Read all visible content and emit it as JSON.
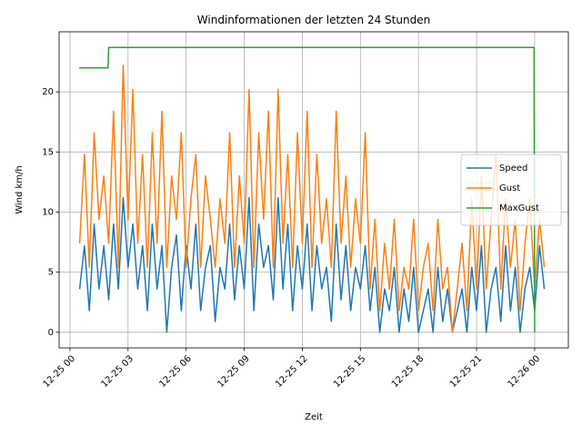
{
  "chart_data": {
    "type": "line",
    "title": "Windinformationen der letzten 24 Stunden",
    "x_label": "Zeit",
    "y_label": "Wind km/h",
    "xlim": [
      -0.56,
      25.74
    ],
    "ylim": [
      -1.3,
      25.0
    ],
    "xticks": [
      {
        "value": 0,
        "label": "12-25 00"
      },
      {
        "value": 3,
        "label": "12-25 03"
      },
      {
        "value": 6,
        "label": "12-25 06"
      },
      {
        "value": 9,
        "label": "12-25 09"
      },
      {
        "value": 12,
        "label": "12-25 12"
      },
      {
        "value": 15,
        "label": "12-25 15"
      },
      {
        "value": 18,
        "label": "12-25 18"
      },
      {
        "value": 21,
        "label": "12-25 21"
      },
      {
        "value": 24,
        "label": "12-26 00"
      }
    ],
    "yticks": [
      0,
      5,
      10,
      15,
      20
    ],
    "grid": true,
    "legend": "center right",
    "x": [
      0.5,
      0.75,
      1,
      1.25,
      1.5,
      1.75,
      2,
      2.25,
      2.5,
      2.75,
      3,
      3.25,
      3.5,
      3.75,
      4,
      4.25,
      4.5,
      4.75,
      5,
      5.25,
      5.5,
      5.75,
      6,
      6.25,
      6.5,
      6.75,
      7,
      7.25,
      7.5,
      7.75,
      8,
      8.25,
      8.5,
      8.75,
      9,
      9.25,
      9.5,
      9.75,
      10,
      10.25,
      10.5,
      10.75,
      11,
      11.25,
      11.5,
      11.75,
      12,
      12.25,
      12.5,
      12.75,
      13,
      13.25,
      13.5,
      13.75,
      14,
      14.25,
      14.5,
      14.75,
      15,
      15.25,
      15.5,
      15.75,
      16,
      16.25,
      16.5,
      16.75,
      17,
      17.25,
      17.5,
      17.75,
      18,
      18.25,
      18.5,
      18.75,
      19,
      19.25,
      19.5,
      19.75,
      20,
      20.25,
      20.5,
      20.75,
      21,
      21.25,
      21.5,
      21.75,
      22,
      22.25,
      22.5,
      22.75,
      23,
      23.25,
      23.5,
      23.75,
      24,
      24.25,
      24.5
    ],
    "series": [
      {
        "name": "Speed",
        "color": "#1f77b4",
        "values": [
          3.6,
          7.2,
          1.8,
          9.0,
          3.6,
          7.2,
          2.7,
          9.0,
          3.6,
          11.2,
          5.4,
          9.0,
          3.6,
          7.2,
          1.8,
          9.0,
          3.6,
          7.2,
          0,
          5.4,
          8.1,
          1.8,
          7.2,
          3.6,
          9.0,
          1.8,
          5.4,
          7.2,
          0.9,
          5.4,
          3.6,
          9.0,
          2.7,
          7.2,
          3.6,
          11.2,
          1.8,
          9.0,
          5.4,
          7.2,
          2.7,
          11.2,
          3.6,
          9.0,
          1.8,
          7.2,
          3.6,
          9.0,
          1.8,
          7.2,
          3.6,
          5.4,
          0.9,
          9.0,
          2.7,
          7.2,
          1.8,
          5.4,
          3.6,
          7.2,
          1.8,
          5.4,
          0,
          3.6,
          1.8,
          5.4,
          0,
          3.6,
          0.9,
          5.4,
          0,
          1.8,
          3.6,
          0,
          5.4,
          0.9,
          3.6,
          0,
          1.8,
          3.6,
          0,
          5.4,
          1.8,
          7.2,
          0,
          3.6,
          5.4,
          0.9,
          7.2,
          1.8,
          5.4,
          0,
          3.6,
          5.4,
          1.8,
          7.2,
          3.6
        ]
      },
      {
        "name": "Gust",
        "color": "#ff7f0e",
        "values": [
          7.4,
          14.8,
          5.4,
          16.6,
          9.4,
          13.0,
          7.4,
          18.4,
          5.4,
          22.2,
          9.4,
          20.2,
          7.4,
          14.8,
          5.4,
          16.6,
          7.4,
          18.4,
          5.4,
          13.0,
          9.4,
          16.6,
          5.4,
          11.1,
          14.8,
          5.4,
          13.0,
          9.4,
          5.4,
          11.1,
          7.4,
          16.6,
          5.4,
          13.0,
          7.4,
          20.2,
          5.4,
          16.6,
          9.4,
          18.4,
          5.4,
          20.2,
          7.4,
          14.8,
          5.4,
          16.6,
          7.4,
          18.4,
          5.4,
          14.8,
          7.4,
          11.1,
          5.4,
          18.4,
          7.4,
          13.0,
          5.4,
          11.1,
          7.4,
          16.6,
          3.6,
          9.4,
          1.8,
          7.4,
          3.6,
          9.4,
          1.8,
          5.4,
          3.6,
          9.4,
          1.8,
          5.4,
          7.4,
          1.8,
          9.4,
          3.6,
          5.4,
          0,
          3.6,
          7.4,
          1.8,
          11.1,
          3.6,
          13.0,
          3.6,
          9.4,
          14.8,
          3.6,
          11.1,
          5.4,
          9.4,
          1.8,
          7.4,
          11.1,
          3.6,
          9.4,
          5.4
        ]
      },
      {
        "name": "MaxGust",
        "color": "#2ca02c",
        "x": [
          0.47,
          1.97,
          2.0,
          23.97,
          24.0
        ],
        "values": [
          22.0,
          22.0,
          23.7,
          23.7,
          0
        ]
      }
    ]
  }
}
